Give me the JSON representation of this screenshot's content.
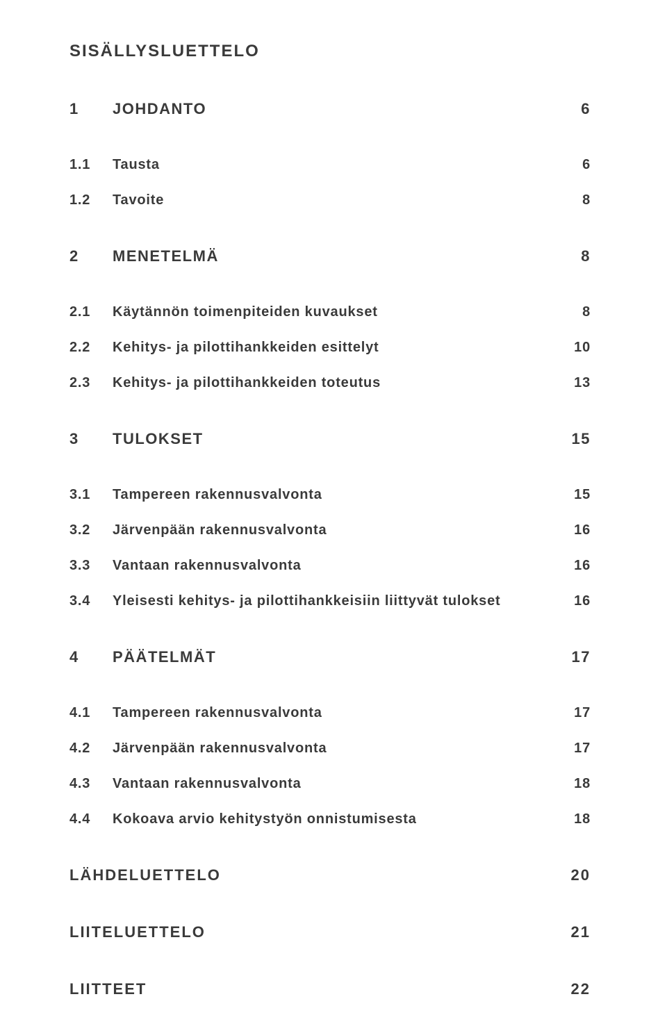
{
  "title": "SISÄLLYSLUETTELO",
  "colors": {
    "text": "#3a3a3a",
    "background": "#ffffff"
  },
  "typography": {
    "family": "Arial, Helvetica, sans-serif",
    "title_size_pt": 18,
    "level1_size_pt": 17,
    "level2_size_pt": 15
  },
  "entries": {
    "s1": {
      "num": "1",
      "label": "JOHDANTO",
      "page": "6"
    },
    "s11": {
      "num": "1.1",
      "label": "Tausta",
      "page": "6"
    },
    "s12": {
      "num": "1.2",
      "label": "Tavoite",
      "page": "8"
    },
    "s2": {
      "num": "2",
      "label": "MENETELMÄ",
      "page": "8"
    },
    "s21": {
      "num": "2.1",
      "label": "Käytännön toimenpiteiden kuvaukset",
      "page": "8"
    },
    "s22": {
      "num": "2.2",
      "label": "Kehitys- ja pilottihankkeiden esittelyt",
      "page": "10"
    },
    "s23": {
      "num": "2.3",
      "label": "Kehitys- ja pilottihankkeiden toteutus",
      "page": "13"
    },
    "s3": {
      "num": "3",
      "label": "TULOKSET",
      "page": "15"
    },
    "s31": {
      "num": "3.1",
      "label": "Tampereen rakennusvalvonta",
      "page": "15"
    },
    "s32": {
      "num": "3.2",
      "label": "Järvenpään rakennusvalvonta",
      "page": "16"
    },
    "s33": {
      "num": "3.3",
      "label": "Vantaan rakennusvalvonta",
      "page": "16"
    },
    "s34": {
      "num": "3.4",
      "label": "Yleisesti kehitys- ja pilottihankkeisiin liittyvät tulokset",
      "page": "16"
    },
    "s4": {
      "num": "4",
      "label": "PÄÄTELMÄT",
      "page": "17"
    },
    "s41": {
      "num": "4.1",
      "label": "Tampereen rakennusvalvonta",
      "page": "17"
    },
    "s42": {
      "num": "4.2",
      "label": "Järvenpään rakennusvalvonta",
      "page": "17"
    },
    "s43": {
      "num": "4.3",
      "label": "Vantaan rakennusvalvonta",
      "page": "18"
    },
    "s44": {
      "num": "4.4",
      "label": "Kokoava arvio kehitystyön onnistumisesta",
      "page": "18"
    },
    "refs": {
      "label": "LÄHDELUETTELO",
      "page": "20"
    },
    "applist": {
      "label": "LIITELUETTELO",
      "page": "21"
    },
    "apps": {
      "label": "LIITTEET",
      "page": "22"
    }
  }
}
